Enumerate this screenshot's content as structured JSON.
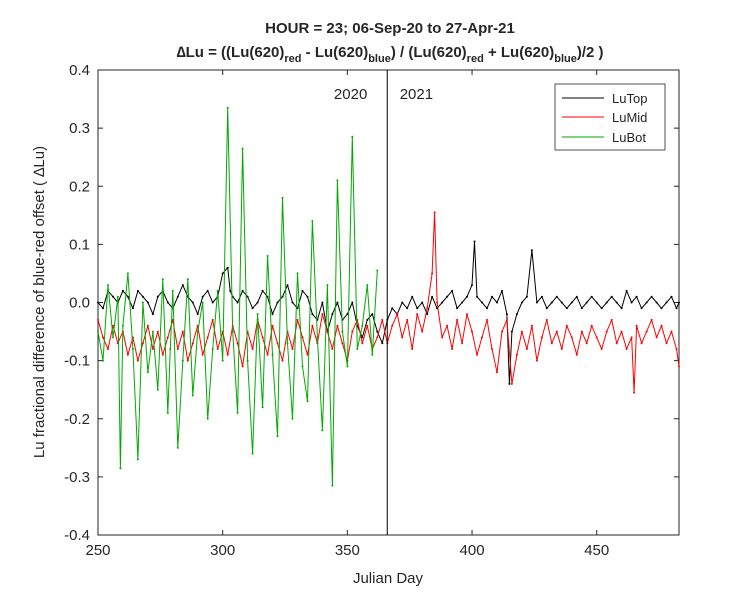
{
  "chart_data": {
    "type": "line",
    "title_line1": "HOUR = 23; 06-Sep-20 to 27-Apr-21",
    "title_line2": {
      "prefix": "∆Lu = ((Lu(620)",
      "sub1": "red",
      "mid1": " - Lu(620)",
      "sub2": "blue",
      "mid2": ") / (Lu(620)",
      "sub3": "red",
      "mid3": " + Lu(620)",
      "sub4": "blue",
      "suffix": ")/2  )"
    },
    "xlabel": "Julian Day",
    "ylabel": "Lu fractional difference of blue-red offset (  ∆Lu)",
    "xlim": [
      250,
      483
    ],
    "ylim": [
      -0.4,
      0.4
    ],
    "x_ticks": [
      250,
      300,
      350,
      400,
      450
    ],
    "y_ticks": [
      -0.4,
      -0.3,
      -0.2,
      -0.1,
      0.0,
      0.1,
      0.2,
      0.3,
      0.4
    ],
    "y_tick_labels": [
      "-0.4",
      "-0.3",
      "-0.2",
      "-0.1",
      "0.0",
      "0.1",
      "0.2",
      "0.3",
      "0.4"
    ],
    "grid": false,
    "legend_position": "top-right",
    "vline_x": 366,
    "annotations": [
      {
        "text": "2020",
        "x": 358,
        "y": 0.35
      },
      {
        "text": "2021",
        "x": 371,
        "y": 0.35
      }
    ],
    "series": [
      {
        "name": "LuTop",
        "color": "#000000",
        "x": [
          250,
          252,
          254,
          256,
          258,
          260,
          262,
          264,
          266,
          268,
          270,
          272,
          274,
          276,
          278,
          280,
          282,
          284,
          286,
          288,
          290,
          292,
          294,
          296,
          298,
          300,
          302,
          303,
          304,
          306,
          308,
          310,
          312,
          314,
          316,
          318,
          320,
          322,
          324,
          326,
          328,
          330,
          332,
          334,
          336,
          338,
          340,
          342,
          344,
          346,
          348,
          350,
          352,
          354,
          356,
          358,
          360,
          362,
          364,
          366,
          368,
          370,
          372,
          374,
          376,
          378,
          380,
          382,
          384,
          386,
          388,
          390,
          392,
          394,
          396,
          398,
          400,
          401,
          402,
          404,
          406,
          408,
          410,
          412,
          414,
          415,
          416,
          418,
          420,
          422,
          424,
          426,
          428,
          430,
          432,
          434,
          436,
          438,
          440,
          442,
          444,
          446,
          448,
          450,
          452,
          454,
          456,
          458,
          460,
          462,
          464,
          466,
          468,
          470,
          472,
          474,
          476,
          478,
          480,
          482,
          483
        ],
        "y": [
          0.0,
          -0.01,
          0.02,
          0.01,
          0.0,
          0.02,
          0.01,
          -0.01,
          0.02,
          0.01,
          0.0,
          -0.02,
          0.01,
          0.02,
          0.0,
          -0.01,
          0.01,
          0.03,
          0.01,
          0.0,
          -0.02,
          0.01,
          0.02,
          0.0,
          0.01,
          0.05,
          0.06,
          0.02,
          0.01,
          0.0,
          0.02,
          0.01,
          -0.01,
          0.0,
          0.02,
          0.01,
          -0.02,
          0.0,
          0.01,
          0.03,
          0.0,
          -0.01,
          0.02,
          0.01,
          -0.02,
          -0.03,
          0.0,
          -0.05,
          -0.02,
          0.0,
          -0.03,
          -0.02,
          0.0,
          -0.04,
          -0.06,
          -0.03,
          -0.02,
          -0.05,
          -0.07,
          -0.03,
          -0.01,
          -0.02,
          0.0,
          -0.01,
          0.01,
          -0.01,
          0.0,
          -0.02,
          0.01,
          -0.01,
          0.0,
          0.01,
          0.02,
          -0.01,
          0.0,
          0.01,
          0.03,
          0.105,
          0.01,
          0.0,
          -0.01,
          0.01,
          0.0,
          0.02,
          -0.02,
          -0.14,
          -0.05,
          -0.02,
          0.0,
          0.01,
          0.09,
          0.0,
          0.01,
          -0.01,
          0.0,
          0.01,
          0.0,
          -0.01,
          0.0,
          0.01,
          -0.01,
          0.0,
          0.01,
          0.0,
          -0.01,
          0.0,
          0.01,
          0.0,
          -0.01,
          0.02,
          0.0,
          0.01,
          -0.01,
          0.0,
          0.01,
          0.0,
          -0.01,
          0.0,
          0.01,
          -0.01,
          0.0
        ]
      },
      {
        "name": "LuMid",
        "color": "#ff0000",
        "x": [
          250,
          252,
          254,
          256,
          258,
          260,
          262,
          264,
          266,
          268,
          270,
          272,
          274,
          276,
          278,
          280,
          282,
          284,
          286,
          288,
          290,
          292,
          294,
          296,
          298,
          300,
          302,
          304,
          306,
          308,
          310,
          312,
          314,
          316,
          318,
          320,
          322,
          324,
          326,
          328,
          330,
          332,
          334,
          336,
          338,
          340,
          342,
          344,
          346,
          348,
          350,
          352,
          354,
          356,
          358,
          360,
          362,
          364,
          366,
          368,
          370,
          372,
          374,
          376,
          378,
          380,
          382,
          384,
          385,
          386,
          388,
          390,
          392,
          394,
          396,
          398,
          400,
          402,
          404,
          406,
          408,
          410,
          412,
          414,
          416,
          418,
          420,
          422,
          424,
          426,
          428,
          430,
          432,
          434,
          436,
          438,
          440,
          442,
          444,
          446,
          448,
          450,
          452,
          454,
          456,
          458,
          460,
          462,
          464,
          465,
          466,
          468,
          470,
          472,
          474,
          476,
          478,
          480,
          482,
          483
        ],
        "y": [
          -0.03,
          -0.06,
          -0.08,
          -0.04,
          -0.07,
          -0.05,
          -0.09,
          -0.06,
          -0.1,
          -0.07,
          -0.04,
          -0.08,
          -0.05,
          -0.09,
          -0.06,
          -0.03,
          -0.08,
          -0.05,
          -0.1,
          -0.07,
          -0.04,
          -0.09,
          -0.06,
          -0.03,
          -0.08,
          -0.05,
          -0.09,
          -0.04,
          -0.07,
          -0.11,
          -0.05,
          -0.08,
          -0.03,
          -0.06,
          -0.09,
          -0.04,
          -0.07,
          -0.1,
          -0.05,
          -0.08,
          -0.03,
          -0.06,
          -0.09,
          -0.04,
          -0.07,
          -0.02,
          -0.05,
          -0.08,
          -0.04,
          -0.07,
          -0.1,
          -0.05,
          -0.03,
          -0.07,
          -0.04,
          -0.08,
          -0.06,
          -0.03,
          -0.07,
          -0.04,
          -0.02,
          -0.06,
          -0.03,
          -0.08,
          -0.02,
          -0.05,
          -0.01,
          0.05,
          0.155,
          0.0,
          -0.06,
          -0.04,
          -0.08,
          -0.03,
          -0.07,
          -0.02,
          -0.05,
          -0.09,
          -0.06,
          -0.03,
          -0.08,
          -0.12,
          -0.05,
          -0.03,
          -0.14,
          -0.09,
          -0.05,
          -0.08,
          -0.04,
          -0.1,
          -0.06,
          -0.03,
          -0.07,
          -0.05,
          -0.08,
          -0.04,
          -0.06,
          -0.09,
          -0.05,
          -0.07,
          -0.04,
          -0.06,
          -0.08,
          -0.05,
          -0.03,
          -0.07,
          -0.05,
          -0.08,
          -0.06,
          -0.155,
          -0.04,
          -0.07,
          -0.05,
          -0.03,
          -0.06,
          -0.04,
          -0.07,
          -0.05,
          -0.08,
          -0.11
        ]
      },
      {
        "name": "LuBot",
        "color": "#00aa00",
        "x": [
          250,
          252,
          254,
          256,
          258,
          259,
          260,
          262,
          264,
          266,
          268,
          270,
          272,
          274,
          276,
          278,
          279,
          280,
          282,
          284,
          286,
          288,
          290,
          292,
          294,
          296,
          298,
          300,
          302,
          304,
          306,
          308,
          310,
          312,
          314,
          316,
          318,
          320,
          322,
          324,
          326,
          328,
          330,
          332,
          334,
          336,
          338,
          340,
          342,
          344,
          346,
          348,
          350,
          352,
          354,
          356,
          358,
          360,
          362
        ],
        "y": [
          -0.05,
          -0.1,
          0.03,
          -0.06,
          0.01,
          -0.285,
          -0.04,
          0.05,
          -0.08,
          -0.27,
          0.0,
          -0.12,
          -0.05,
          -0.15,
          0.04,
          -0.19,
          -0.08,
          0.02,
          -0.25,
          -0.1,
          0.04,
          -0.16,
          -0.05,
          0.0,
          -0.2,
          -0.08,
          0.02,
          -0.1,
          0.335,
          -0.05,
          -0.19,
          0.265,
          -0.1,
          -0.26,
          -0.02,
          -0.18,
          0.08,
          -0.09,
          -0.23,
          0.18,
          -0.07,
          -0.2,
          0.05,
          -0.11,
          -0.17,
          0.14,
          -0.06,
          -0.22,
          0.03,
          -0.315,
          0.21,
          -0.05,
          -0.11,
          0.285,
          -0.08,
          -0.04,
          0.03,
          -0.09,
          0.055
        ]
      }
    ]
  }
}
